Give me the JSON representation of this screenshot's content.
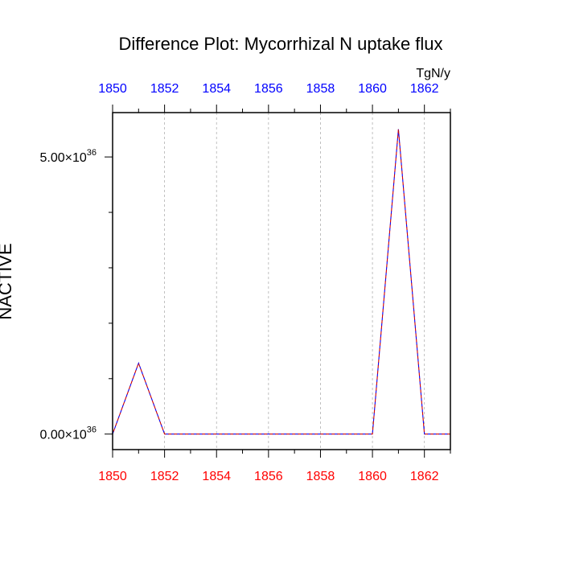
{
  "chart_data": {
    "type": "line",
    "title": "Difference Plot: Mycorrhizal N uptake flux",
    "units": "TgN/y",
    "ylabel": "NACTIVE",
    "x": [
      1850,
      1851,
      1852,
      1853,
      1854,
      1855,
      1856,
      1857,
      1858,
      1859,
      1860,
      1861,
      1862,
      1863
    ],
    "series": [
      {
        "values": [
          0,
          1.28e+36,
          0,
          0,
          0,
          0,
          0,
          0,
          0,
          0,
          0,
          5.5e+36,
          0,
          0
        ],
        "color": "#0000ff"
      },
      {
        "values": [
          0,
          1.28e+36,
          0,
          0,
          0,
          0,
          0,
          0,
          0,
          0,
          0,
          5.5e+36,
          0,
          0
        ],
        "color": "#cc0000"
      }
    ],
    "xlim": [
      1850,
      1863
    ],
    "ylim": [
      -2.8e+35,
      5.8e+36
    ],
    "x_ticks": [
      "1850",
      "1852",
      "1854",
      "1856",
      "1858",
      "1860",
      "1862"
    ],
    "x_tick_values": [
      1850,
      1852,
      1854,
      1856,
      1858,
      1860,
      1862
    ],
    "y_ticks": [
      {
        "value": 0,
        "mantissa": "0.00",
        "times": "×10",
        "exponent": "36"
      },
      {
        "value": 5e+36,
        "mantissa": "5.00",
        "times": "×10",
        "exponent": "36"
      }
    ],
    "y_minor_step": 1e+36,
    "grid": true,
    "colors": {
      "top_axis_labels": "#0000ff",
      "bottom_axis_labels": "#ff0000",
      "grid": "#b0b0b0",
      "axes": "#000000"
    }
  }
}
